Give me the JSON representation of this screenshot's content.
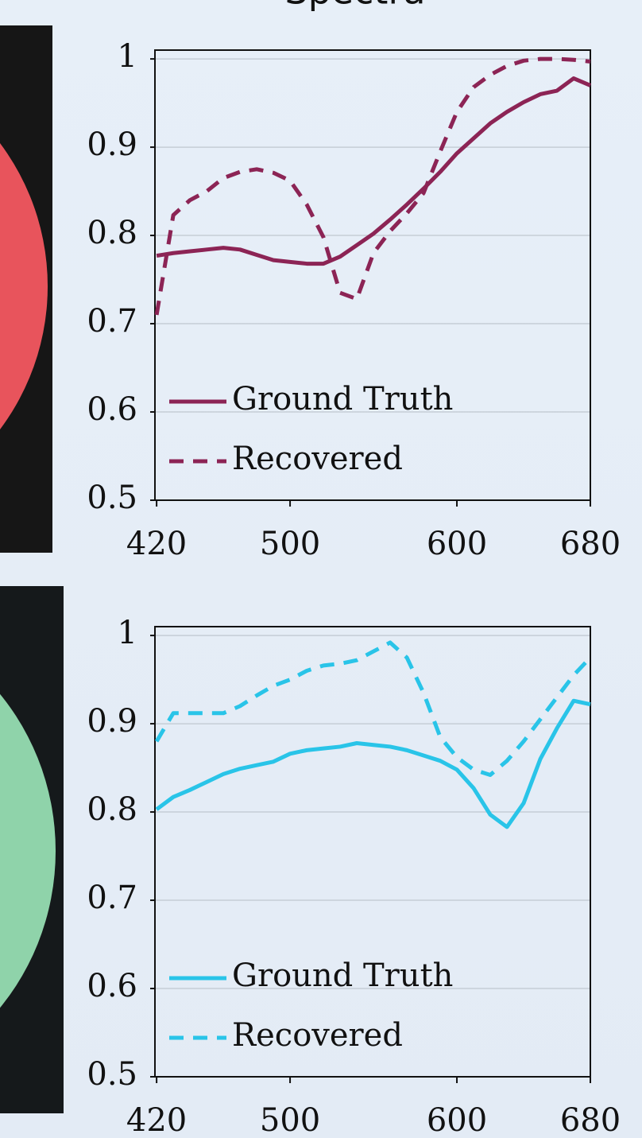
{
  "title": "Spectra",
  "chart_data": [
    {
      "type": "line",
      "xlim": [
        419,
        680
      ],
      "ylim": [
        0.5,
        1.01
      ],
      "xticks": [
        420,
        500,
        600,
        680
      ],
      "yticks": [
        0.5,
        0.6,
        0.7,
        0.8,
        0.9,
        1
      ],
      "grid": true,
      "legend": "lower left",
      "x": [
        420,
        430,
        440,
        450,
        460,
        470,
        480,
        490,
        500,
        510,
        520,
        530,
        540,
        550,
        560,
        570,
        580,
        590,
        600,
        610,
        620,
        630,
        640,
        650,
        660,
        670,
        680
      ],
      "series": [
        {
          "name": "Ground Truth",
          "color": "#8c2455",
          "style": "solid",
          "values": [
            0.777,
            0.78,
            0.782,
            0.784,
            0.786,
            0.784,
            0.778,
            0.772,
            0.77,
            0.768,
            0.768,
            0.776,
            0.789,
            0.802,
            0.818,
            0.835,
            0.853,
            0.872,
            0.893,
            0.91,
            0.927,
            0.94,
            0.951,
            0.96,
            0.964,
            0.978,
            0.97
          ]
        },
        {
          "name": "Recovered",
          "color": "#8c2455",
          "style": "dashed",
          "values": [
            0.71,
            0.823,
            0.84,
            0.85,
            0.865,
            0.872,
            0.875,
            0.871,
            0.862,
            0.835,
            0.798,
            0.735,
            0.728,
            0.78,
            0.805,
            0.825,
            0.848,
            0.895,
            0.94,
            0.968,
            0.982,
            0.992,
            0.998,
            1.0,
            1.0,
            0.999,
            0.997
          ]
        }
      ]
    },
    {
      "type": "line",
      "xlim": [
        419,
        680
      ],
      "ylim": [
        0.5,
        1.01
      ],
      "xticks": [
        420,
        500,
        600,
        680
      ],
      "yticks": [
        0.5,
        0.6,
        0.7,
        0.8,
        0.9,
        1
      ],
      "grid": true,
      "legend": "lower left",
      "x": [
        420,
        430,
        440,
        450,
        460,
        470,
        480,
        490,
        500,
        510,
        520,
        530,
        540,
        550,
        560,
        570,
        580,
        590,
        600,
        610,
        620,
        630,
        640,
        650,
        660,
        670,
        680
      ],
      "series": [
        {
          "name": "Ground Truth",
          "color": "#29c4e8",
          "style": "solid",
          "values": [
            0.803,
            0.817,
            0.825,
            0.834,
            0.843,
            0.849,
            0.853,
            0.857,
            0.866,
            0.87,
            0.872,
            0.874,
            0.878,
            0.876,
            0.874,
            0.87,
            0.864,
            0.858,
            0.848,
            0.827,
            0.797,
            0.783,
            0.81,
            0.86,
            0.895,
            0.926,
            0.922
          ]
        },
        {
          "name": "Recovered",
          "color": "#29c4e8",
          "style": "dashed",
          "values": [
            0.88,
            0.912,
            0.912,
            0.912,
            0.912,
            0.92,
            0.932,
            0.943,
            0.95,
            0.96,
            0.966,
            0.968,
            0.972,
            0.982,
            0.992,
            0.975,
            0.935,
            0.885,
            0.862,
            0.848,
            0.842,
            0.858,
            0.88,
            0.905,
            0.93,
            0.955,
            0.975
          ]
        }
      ]
    }
  ]
}
